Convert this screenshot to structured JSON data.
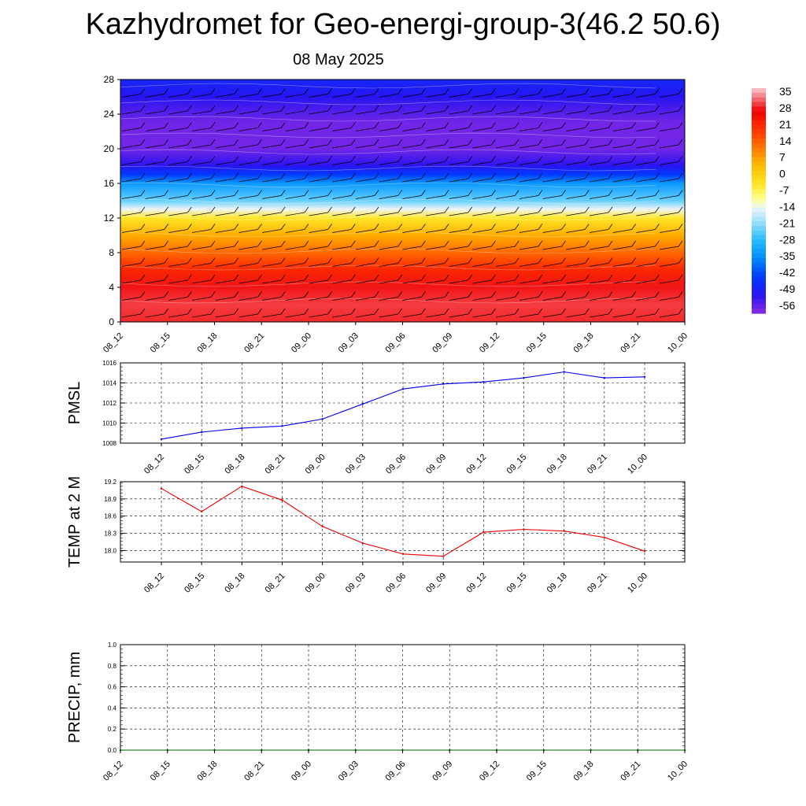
{
  "title": "Kazhydromet for Geo-energi-group-3(46.2 50.6)",
  "subtitle": "08 May 2025",
  "chart_data": [
    {
      "type": "heatmap",
      "title": "",
      "x_ticks": [
        "08_12",
        "08_15",
        "08_18",
        "08_21",
        "09_00",
        "09_03",
        "09_06",
        "09_09",
        "09_12",
        "09_15",
        "09_18",
        "09_21",
        "10_00"
      ],
      "y_ticks": [
        0,
        4,
        8,
        12,
        16,
        20,
        24,
        28
      ],
      "ylim": [
        0,
        28
      ],
      "colorbar": {
        "labels": [
          "35",
          "28",
          "21",
          "14",
          "7",
          "0",
          "-7",
          "-14",
          "-21",
          "-28",
          "-35",
          "-42",
          "-49",
          "-56"
        ],
        "range": [
          -60,
          38
        ]
      },
      "temperature_by_level": [
        {
          "level": 0,
          "value": 30
        },
        {
          "level": 2,
          "value": 31
        },
        {
          "level": 4,
          "value": 29
        },
        {
          "level": 6,
          "value": 22
        },
        {
          "level": 8,
          "value": 14
        },
        {
          "level": 10,
          "value": 6
        },
        {
          "level": 12,
          "value": -4
        },
        {
          "level": 13,
          "value": -14
        },
        {
          "level": 14,
          "value": -24
        },
        {
          "level": 16,
          "value": -34
        },
        {
          "level": 17,
          "value": -44
        },
        {
          "level": 18,
          "value": -52
        },
        {
          "level": 20,
          "value": -58
        },
        {
          "level": 23,
          "value": -58
        },
        {
          "level": 26,
          "value": -52
        },
        {
          "level": 28,
          "value": -48
        }
      ]
    },
    {
      "type": "line",
      "ylabel": "PMSL",
      "x": [
        "08_12",
        "08_15",
        "08_18",
        "08_21",
        "09_00",
        "09_03",
        "09_06",
        "09_09",
        "09_12",
        "09_15",
        "09_18",
        "09_21",
        "10_00"
      ],
      "series": [
        {
          "values": [
            1008.4,
            1009.1,
            1009.5,
            1009.7,
            1010.4,
            1011.9,
            1013.4,
            1013.9,
            1014.1,
            1014.5,
            1015.1,
            1014.5,
            1014.6
          ]
        }
      ],
      "ylim": [
        1008,
        1016
      ],
      "y_ticks": [
        "1008",
        "1010",
        "1012",
        "1014",
        "1016"
      ],
      "color": "#0000ee",
      "grid": true
    },
    {
      "type": "line",
      "ylabel": "TEMP at 2 M",
      "x": [
        "08_12",
        "08_15",
        "08_18",
        "08_21",
        "09_00",
        "09_03",
        "09_06",
        "09_09",
        "09_12",
        "09_15",
        "09_18",
        "09_21",
        "10_00"
      ],
      "series": [
        {
          "values": [
            19.08,
            18.68,
            19.12,
            18.88,
            18.42,
            18.13,
            17.94,
            17.9,
            18.32,
            18.37,
            18.34,
            18.23,
            17.99
          ]
        }
      ],
      "ylim": [
        17.8,
        19.2
      ],
      "y_ticks": [
        "18.0",
        "18.3",
        "18.6",
        "18.9",
        "19.2"
      ],
      "y_tick_values": [
        18.0,
        18.3,
        18.6,
        18.9,
        19.2
      ],
      "color": "#ee0000",
      "grid": true
    },
    {
      "type": "line",
      "ylabel": "PRECIP, mm",
      "x": [
        "08_12",
        "08_15",
        "08_18",
        "08_21",
        "09_00",
        "09_03",
        "09_06",
        "09_09",
        "09_12",
        "09_15",
        "09_18",
        "09_21",
        "10_00"
      ],
      "series": [
        {
          "values": [
            0,
            0,
            0,
            0,
            0,
            0,
            0,
            0,
            0,
            0,
            0,
            0,
            0
          ]
        }
      ],
      "ylim": [
        0,
        1
      ],
      "y_ticks": [
        "0.0",
        "0.2",
        "0.4",
        "0.6",
        "0.8",
        "1.0"
      ],
      "color": "#006400",
      "grid": true
    }
  ]
}
